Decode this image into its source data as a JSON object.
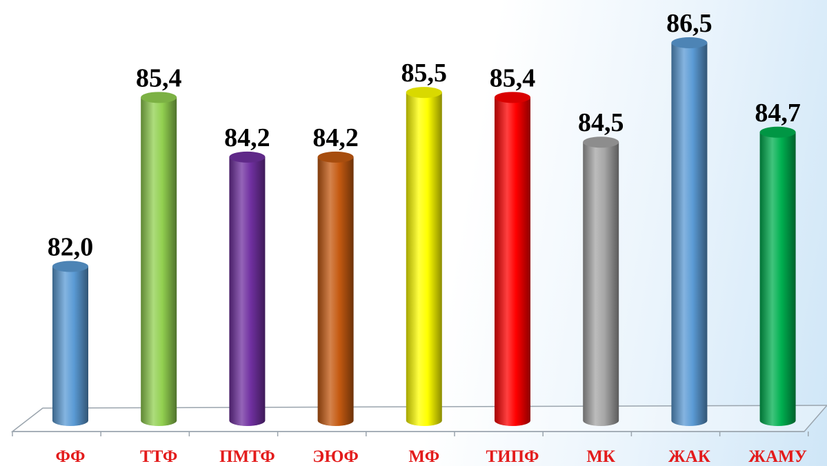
{
  "chart_data": {
    "type": "bar",
    "style": "3d-cylinder",
    "categories": [
      "ФФ",
      "ТТФ",
      "ПМТФ",
      "ЭЮФ",
      "МФ",
      "ТИПФ",
      "МК",
      "ЖАК",
      "ЖАМУ"
    ],
    "values": [
      82.0,
      85.4,
      84.2,
      84.2,
      85.5,
      85.4,
      84.5,
      86.5,
      84.7
    ],
    "data_labels": [
      "82,0",
      "85,4",
      "84,2",
      "84,2",
      "85,5",
      "85,4",
      "84,5",
      "86,5",
      "84,7"
    ],
    "title": "",
    "xlabel": "",
    "ylabel": "",
    "ylim": [
      78.9,
      86.5
    ],
    "grid": false,
    "legend": "none",
    "category_label_color": "#e31b1b",
    "bar_colors": [
      "#5b9bd5",
      "#92d050",
      "#7030a0",
      "#c55a11",
      "#ffff00",
      "#ff0000",
      "#a6a6a6",
      "#5b9bd5",
      "#00b050"
    ]
  }
}
